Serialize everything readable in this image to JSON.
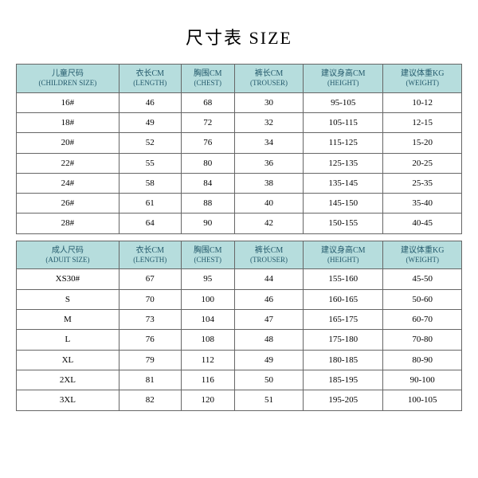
{
  "title": "尺寸表 SIZE",
  "styling": {
    "header_bg": "#b6dddd",
    "header_fg": "#245a6c",
    "body_bg": "#ffffff",
    "body_fg": "#000000",
    "border_color": "#666666",
    "font_family": "SimSun",
    "title_fontsize": 22,
    "cell_fontsize": 11,
    "header_fontsize": 10
  },
  "tables": [
    {
      "columns": [
        {
          "cn": "儿童尺码",
          "en": "(CHILDREN SIZE)"
        },
        {
          "cn": "衣长CM",
          "en": "(LENGTH)"
        },
        {
          "cn": "胸围CM",
          "en": "(CHEST)"
        },
        {
          "cn": "裤长CM",
          "en": "(TROUSER)"
        },
        {
          "cn": "建议身高CM",
          "en": "(HEIGHT)"
        },
        {
          "cn": "建议体重KG",
          "en": "(WEIGHT)"
        }
      ],
      "rows": [
        [
          "16#",
          "46",
          "68",
          "30",
          "95-105",
          "10-12"
        ],
        [
          "18#",
          "49",
          "72",
          "32",
          "105-115",
          "12-15"
        ],
        [
          "20#",
          "52",
          "76",
          "34",
          "115-125",
          "15-20"
        ],
        [
          "22#",
          "55",
          "80",
          "36",
          "125-135",
          "20-25"
        ],
        [
          "24#",
          "58",
          "84",
          "38",
          "135-145",
          "25-35"
        ],
        [
          "26#",
          "61",
          "88",
          "40",
          "145-150",
          "35-40"
        ],
        [
          "28#",
          "64",
          "90",
          "42",
          "150-155",
          "40-45"
        ]
      ]
    },
    {
      "columns": [
        {
          "cn": "成人尺码",
          "en": "(ADUIT SIZE)"
        },
        {
          "cn": "衣长CM",
          "en": "(LENGTH)"
        },
        {
          "cn": "胸围CM",
          "en": "(CHEST)"
        },
        {
          "cn": "裤长CM",
          "en": "(TROUSER)"
        },
        {
          "cn": "建议身高CM",
          "en": "(HEIGHT)"
        },
        {
          "cn": "建议体重KG",
          "en": "(WEIGHT)"
        }
      ],
      "rows": [
        [
          "XS30#",
          "67",
          "95",
          "44",
          "155-160",
          "45-50"
        ],
        [
          "S",
          "70",
          "100",
          "46",
          "160-165",
          "50-60"
        ],
        [
          "M",
          "73",
          "104",
          "47",
          "165-175",
          "60-70"
        ],
        [
          "L",
          "76",
          "108",
          "48",
          "175-180",
          "70-80"
        ],
        [
          "XL",
          "79",
          "112",
          "49",
          "180-185",
          "80-90"
        ],
        [
          "2XL",
          "81",
          "116",
          "50",
          "185-195",
          "90-100"
        ],
        [
          "3XL",
          "82",
          "120",
          "51",
          "195-205",
          "100-105"
        ]
      ]
    }
  ]
}
